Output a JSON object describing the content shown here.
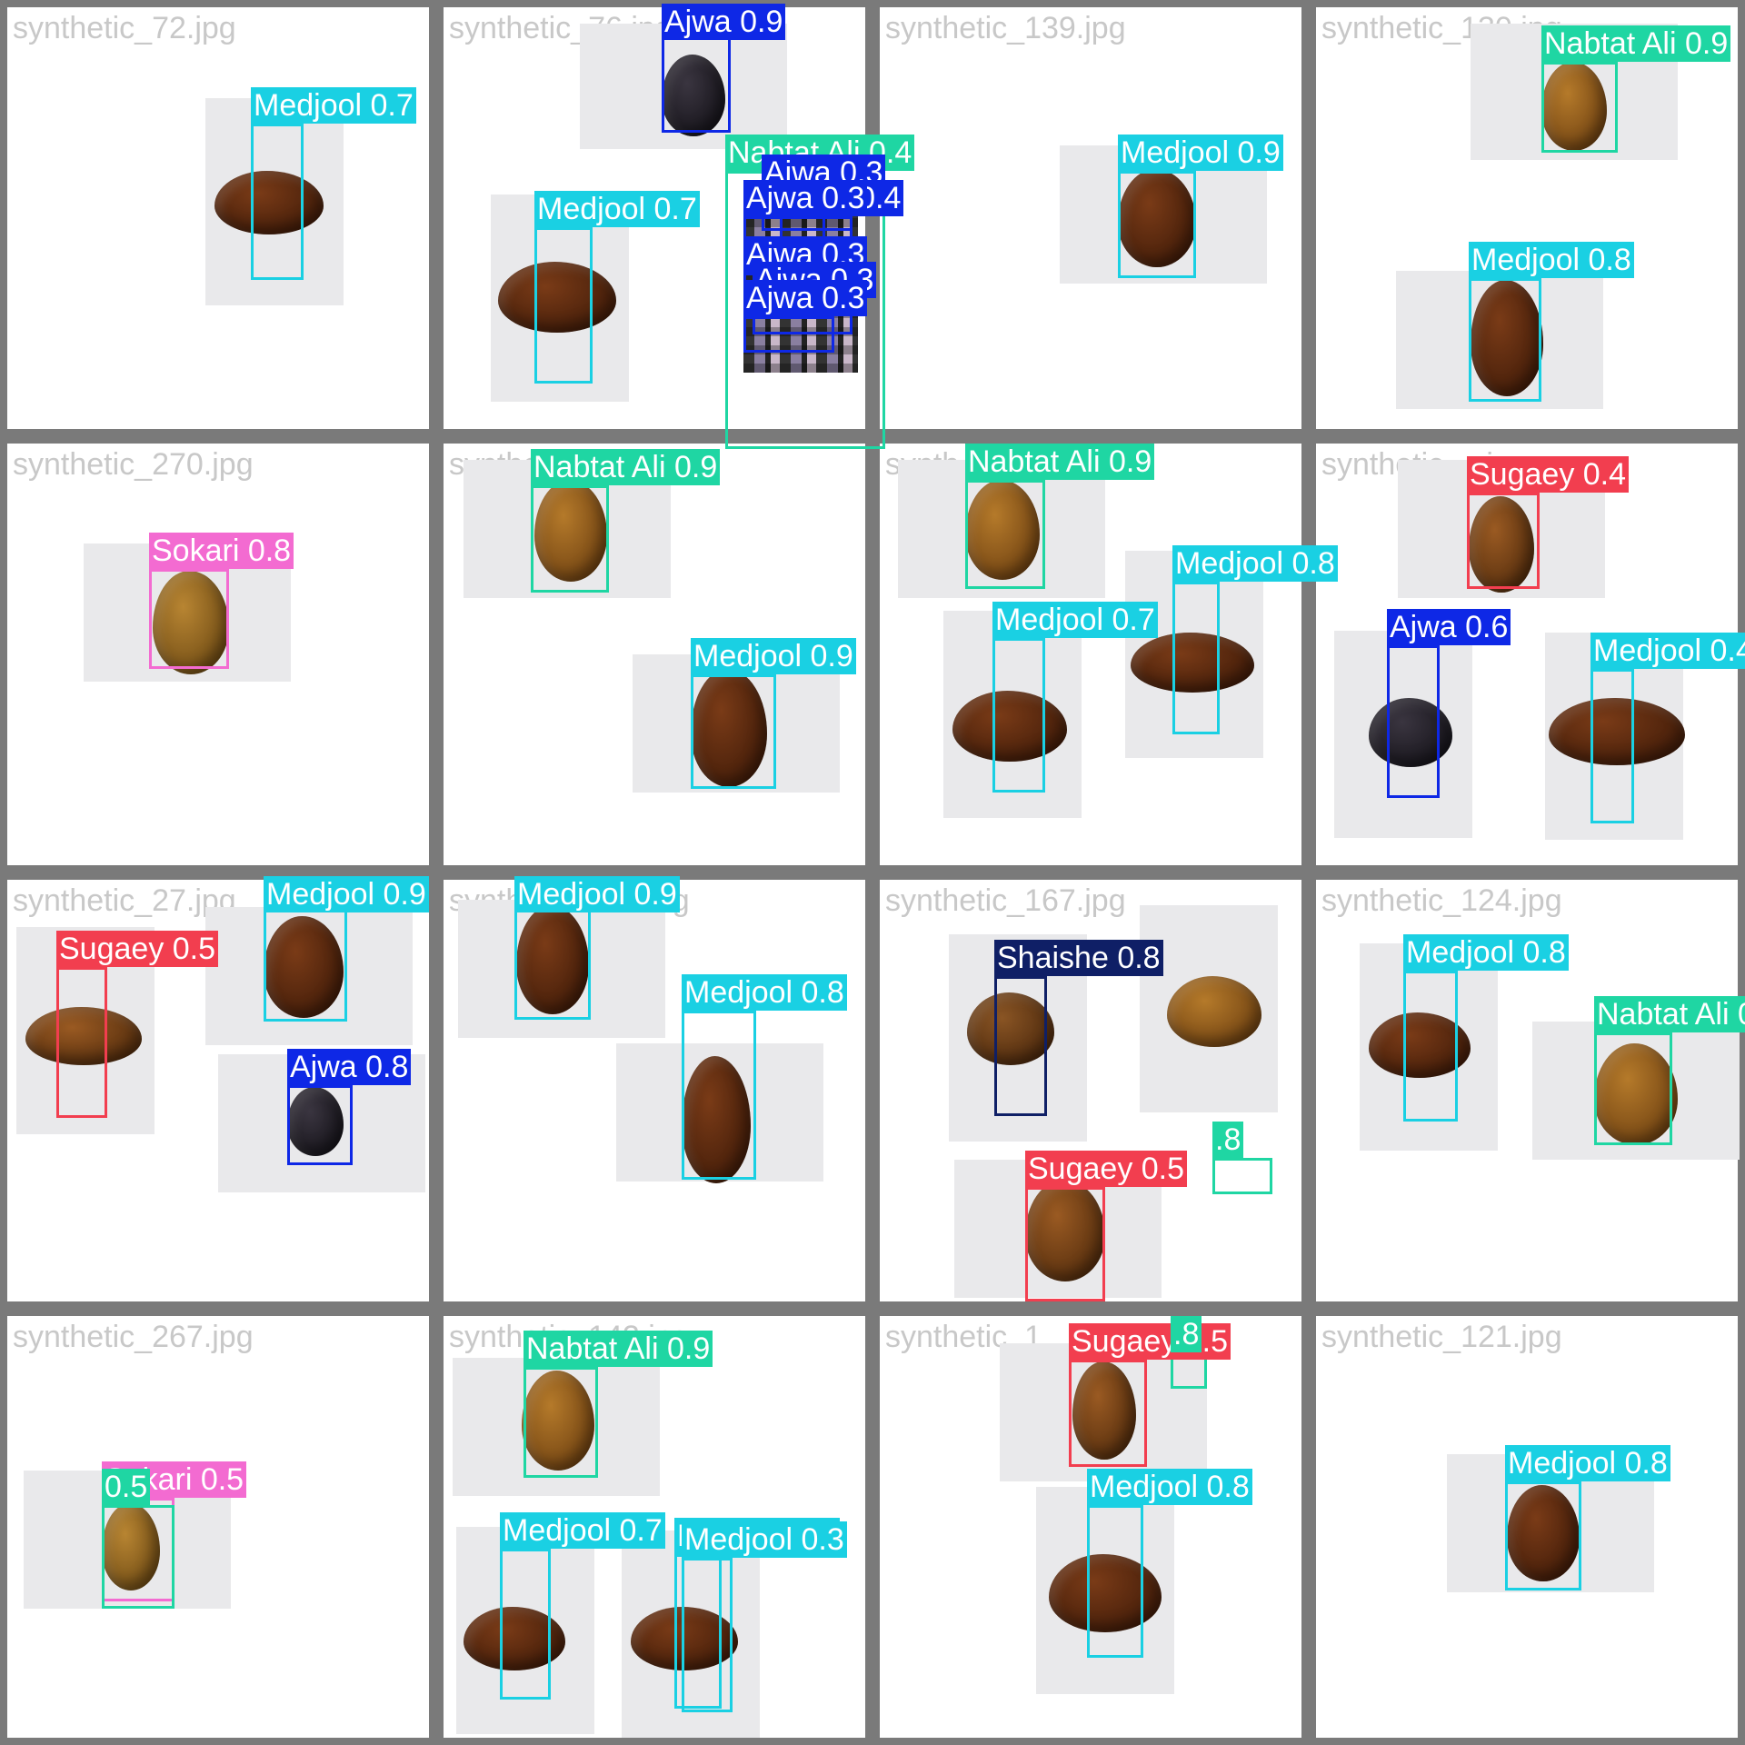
{
  "colors": {
    "Medjool": "#1ad0e3",
    "Ajwa": "#0e28e6",
    "Nabtat Ali": "#1fd6a3",
    "Sokari": "#f36bd1",
    "Sugaey": "#f23e4f",
    "Shaishe": "#0f1f66"
  },
  "cells": [
    {
      "filename": "synthetic_72.jpg",
      "detections": [
        {
          "label": "Medjool 0.7",
          "cls": "Medjool"
        }
      ]
    },
    {
      "filename": "synthetic_76.jpg",
      "detections": [
        {
          "label": "Ajwa 0.9",
          "cls": "Ajwa"
        },
        {
          "label": "Medjool 0.7",
          "cls": "Medjool"
        },
        {
          "label": "Nabtat Ali 0.4",
          "cls": "Nabtat Ali"
        },
        {
          "label": "Ajwa 0.3",
          "cls": "Ajwa"
        },
        {
          "label": "Ajwa 0.4",
          "cls": "Ajwa"
        },
        {
          "label": "Ajwa 0.3",
          "cls": "Ajwa"
        },
        {
          "label": "Ajwa 0.3",
          "cls": "Ajwa"
        },
        {
          "label": "Ajwa 0.3",
          "cls": "Ajwa"
        },
        {
          "label": "Ajwa 0.3",
          "cls": "Ajwa"
        }
      ]
    },
    {
      "filename": "synthetic_139.jpg",
      "detections": [
        {
          "label": "Medjool 0.9",
          "cls": "Medjool"
        }
      ]
    },
    {
      "filename": "synthetic_130.jpg",
      "detections": [
        {
          "label": "Nabtat Ali 0.9",
          "cls": "Nabtat Ali"
        },
        {
          "label": "Medjool 0.8",
          "cls": "Medjool"
        }
      ]
    },
    {
      "filename": "synthetic_270.jpg",
      "detections": [
        {
          "label": "Sokari 0.8",
          "cls": "Sokari"
        }
      ]
    },
    {
      "filename": "synthetic_...jpg",
      "detections": [
        {
          "label": "Nabtat Ali 0.9",
          "cls": "Nabtat Ali"
        },
        {
          "label": "Medjool 0.9",
          "cls": "Medjool"
        }
      ]
    },
    {
      "filename": "synth...",
      "detections": [
        {
          "label": "Nabtat Ali 0.9",
          "cls": "Nabtat Ali"
        },
        {
          "label": "Medjool 0.8",
          "cls": "Medjool"
        },
        {
          "label": "Medjool 0.7",
          "cls": "Medjool"
        }
      ]
    },
    {
      "filename": "synthetic_...jpg",
      "detections": [
        {
          "label": "Sugaey 0.4",
          "cls": "Sugaey"
        },
        {
          "label": "Ajwa 0.6",
          "cls": "Ajwa"
        },
        {
          "label": "Medjool 0.4",
          "cls": "Medjool"
        }
      ]
    },
    {
      "filename": "synthetic_27.jpg",
      "detections": [
        {
          "label": "Medjool 0.9",
          "cls": "Medjool"
        },
        {
          "label": "Sugaey 0.5",
          "cls": "Sugaey"
        },
        {
          "label": "Ajwa 0.8",
          "cls": "Ajwa"
        }
      ]
    },
    {
      "filename": "synthetic_143.jpg",
      "detections": [
        {
          "label": "Medjool 0.9",
          "cls": "Medjool"
        },
        {
          "label": "Medjool 0.8",
          "cls": "Medjool"
        }
      ]
    },
    {
      "filename": "synthetic_167.jpg",
      "detections": [
        {
          "label": "Shaishe 0.8",
          "cls": "Shaishe"
        },
        {
          "label": "Sugaey 0.5",
          "cls": "Sugaey"
        },
        {
          "label": ".8",
          "cls": "Nabtat Ali"
        }
      ]
    },
    {
      "filename": "synthetic_124.jpg",
      "detections": [
        {
          "label": "Medjool 0.8",
          "cls": "Medjool"
        },
        {
          "label": "Nabtat Ali 0.9",
          "cls": "Nabtat Ali"
        }
      ]
    },
    {
      "filename": "synthetic_267.jpg",
      "detections": [
        {
          "label": "Sokari 0.5",
          "cls": "Sokari"
        },
        {
          "label": "0.5",
          "cls": "Nabtat Ali"
        }
      ]
    },
    {
      "filename": "synthetic_142.jpg",
      "detections": [
        {
          "label": "Nabtat Ali 0.9",
          "cls": "Nabtat Ali"
        },
        {
          "label": "Medjool 0.7",
          "cls": "Medjool"
        },
        {
          "label": "Medjool 0.3",
          "cls": "Medjool"
        },
        {
          "label": "Medjool 0.3",
          "cls": "Medjool"
        }
      ]
    },
    {
      "filename": "synthetic_1...",
      "detections": [
        {
          "label": "Sugaey 0.5",
          "cls": "Sugaey"
        },
        {
          "label": ".8",
          "cls": "Nabtat Ali"
        },
        {
          "label": "Medjool 0.8",
          "cls": "Medjool"
        }
      ]
    },
    {
      "filename": "synthetic_121.jpg",
      "detections": [
        {
          "label": "Medjool 0.8",
          "cls": "Medjool"
        }
      ]
    }
  ]
}
